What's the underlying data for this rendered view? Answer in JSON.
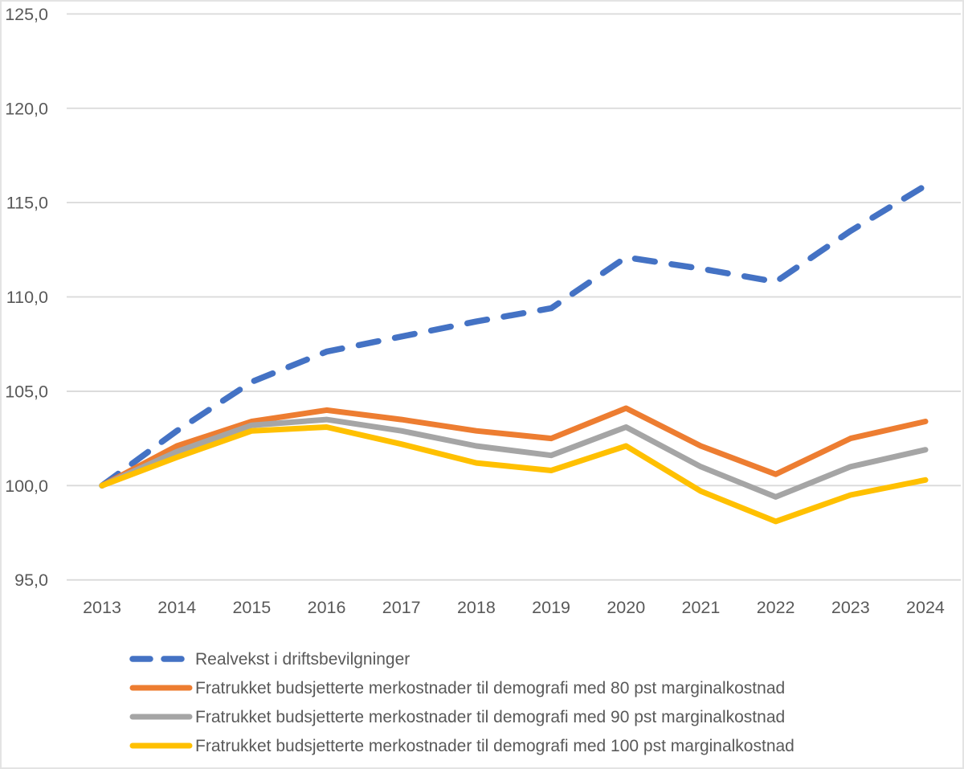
{
  "chart_data": {
    "type": "line",
    "title": "",
    "xlabel": "",
    "ylabel": "",
    "ylim": [
      95,
      125
    ],
    "grid": true,
    "legend_position": "bottom-left",
    "decimal_separator": ",",
    "categories": [
      "2013",
      "2014",
      "2015",
      "2016",
      "2017",
      "2018",
      "2019",
      "2020",
      "2021",
      "2022",
      "2023",
      "2024"
    ],
    "y_ticks": [
      {
        "value": 125,
        "label": "125,0"
      },
      {
        "value": 120,
        "label": "120,0"
      },
      {
        "value": 115,
        "label": "115,0"
      },
      {
        "value": 110,
        "label": "110,0"
      },
      {
        "value": 105,
        "label": "105,0"
      },
      {
        "value": 100,
        "label": "100,0"
      },
      {
        "value": 95,
        "label": "95,0"
      }
    ],
    "series": [
      {
        "id": "realvekst",
        "name": "Realvekst i driftsbevilgninger",
        "color": "#4472C4",
        "style": "dashed",
        "stroke_width": 7.5,
        "values": [
          100.0,
          102.9,
          105.5,
          107.1,
          107.9,
          108.7,
          109.4,
          112.1,
          111.5,
          110.8,
          113.5,
          115.9
        ]
      },
      {
        "id": "80-pst",
        "name": "Fratrukket budsjetterte merkostnader til demografi med 80 pst marginalkostnad",
        "color": "#ED7D31",
        "style": "solid",
        "stroke_width": 7,
        "values": [
          100.0,
          102.1,
          103.4,
          104.0,
          103.5,
          102.9,
          102.5,
          104.1,
          102.1,
          100.6,
          102.5,
          103.4
        ]
      },
      {
        "id": "90-pst",
        "name": "Fratrukket budsjetterte merkostnader til demografi med 90 pst marginalkostnad",
        "color": "#A5A5A5",
        "style": "solid",
        "stroke_width": 7,
        "values": [
          100.0,
          101.8,
          103.2,
          103.5,
          102.9,
          102.1,
          101.6,
          103.1,
          101.0,
          99.4,
          101.0,
          101.9
        ]
      },
      {
        "id": "100-pst",
        "name": "Fratrukket budsjetterte merkostnader til demografi med 100 pst marginalkostnad",
        "color": "#FFC000",
        "style": "solid",
        "stroke_width": 7,
        "values": [
          100.0,
          101.5,
          102.9,
          103.1,
          102.2,
          101.2,
          100.8,
          102.1,
          99.7,
          98.1,
          99.5,
          100.3
        ]
      }
    ]
  },
  "colors": {
    "background": "#FFFFFF",
    "gridline": "#D9D9D9",
    "axis_text": "#595959",
    "frame_border": "#E3E3E3"
  }
}
